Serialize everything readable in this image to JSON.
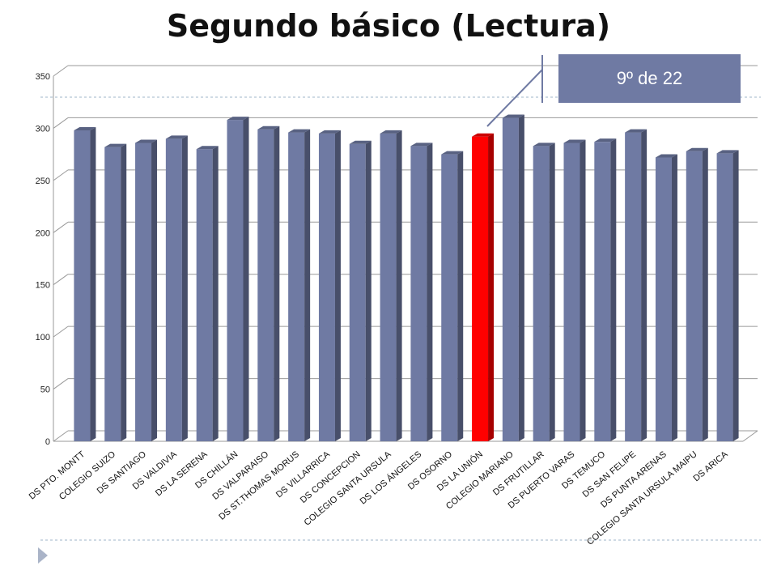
{
  "title": "Segundo básico (Lectura)",
  "callout": "9º de 22",
  "chart_data": {
    "type": "bar",
    "title": "Segundo básico (Lectura)",
    "xlabel": "",
    "ylabel": "",
    "ylim": [
      0,
      350
    ],
    "yticks": [
      0,
      50,
      100,
      150,
      200,
      250,
      300,
      350
    ],
    "grid": true,
    "categories": [
      "DS PTO. MONTT",
      "COLEGIO SUIZO",
      "DS SANTIAGO",
      "DS VALDIVIA",
      "DS LA SERENA",
      "DS CHILLÁN",
      "DS VALPARAISO",
      "DS ST.THOMAS MORUS",
      "DS VILLARRICA",
      "DS CONCEPCION",
      "COLEGIO SANTA URSULA",
      "DS LOS ÁNGELES",
      "DS OSORNO",
      "DS LA UNIÓN",
      "COLEGIO MARIANO",
      "DS FRUTILLAR",
      "DS PUERTO VARAS",
      "DS TEMUCO",
      "DS SAN FELIPE",
      "DS PUNTA ARENAS",
      "COLEGIO SANTA URSULA MAIPU",
      "DS ARICA"
    ],
    "values": [
      298,
      282,
      286,
      290,
      280,
      308,
      299,
      296,
      295,
      285,
      295,
      283,
      275,
      292,
      310,
      283,
      286,
      287,
      296,
      272,
      278,
      276
    ],
    "highlight_index": 13,
    "colors": {
      "bar": "#6f7aa3",
      "highlight": "#ff0000",
      "grid": "#999999"
    }
  }
}
